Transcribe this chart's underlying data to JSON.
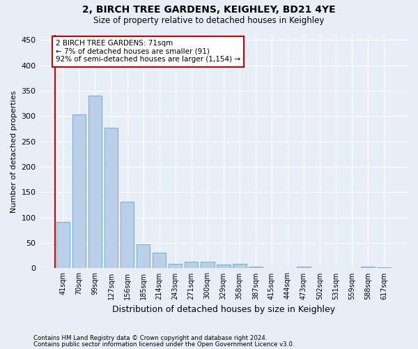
{
  "title": "2, BIRCH TREE GARDENS, KEIGHLEY, BD21 4YE",
  "subtitle": "Size of property relative to detached houses in Keighley",
  "xlabel": "Distribution of detached houses by size in Keighley",
  "ylabel": "Number of detached properties",
  "bar_values": [
    91,
    303,
    341,
    277,
    131,
    47,
    31,
    9,
    13,
    13,
    8,
    9,
    4,
    1,
    1,
    3,
    1,
    1,
    0,
    3,
    2
  ],
  "bar_labels": [
    "41sqm",
    "70sqm",
    "99sqm",
    "127sqm",
    "156sqm",
    "185sqm",
    "214sqm",
    "243sqm",
    "271sqm",
    "300sqm",
    "329sqm",
    "358sqm",
    "387sqm",
    "415sqm",
    "444sqm",
    "473sqm",
    "502sqm",
    "531sqm",
    "559sqm",
    "588sqm",
    "617sqm"
  ],
  "bar_color": "#bad0e8",
  "bar_edge_color": "#7aafd4",
  "vline_color": "#cc0000",
  "annotation_line1": "2 BIRCH TREE GARDENS: 71sqm",
  "annotation_line2": "← 7% of detached houses are smaller (91)",
  "annotation_line3": "92% of semi-detached houses are larger (1,154) →",
  "annotation_box_color": "#cc0000",
  "ylim": [
    0,
    460
  ],
  "yticks": [
    0,
    50,
    100,
    150,
    200,
    250,
    300,
    350,
    400,
    450
  ],
  "footer_line1": "Contains HM Land Registry data © Crown copyright and database right 2024.",
  "footer_line2": "Contains public sector information licensed under the Open Government Licence v3.0.",
  "bg_color": "#e8eef8",
  "plot_bg_color": "#e8eef8"
}
